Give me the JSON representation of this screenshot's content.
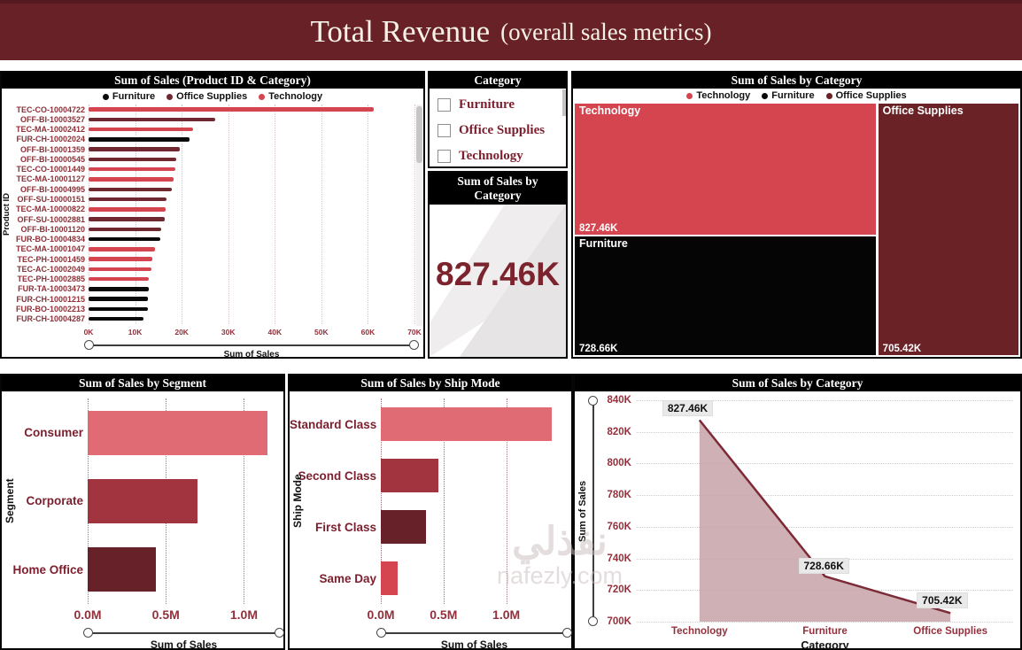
{
  "header": {
    "title": "Total Revenue",
    "subtitle": "(overall sales metrics)"
  },
  "colors": {
    "header_bg": "#682227",
    "panel_title_bg": "#000000",
    "technology": "#d4454f",
    "furniture": "#0a0a0a",
    "office_supplies": "#6f2730",
    "axis_text": "#93303c",
    "category_label_text": "#7b1f2e",
    "area_fill": "#c7a2a7",
    "area_line": "#7b2a36"
  },
  "slicer": {
    "title": "Category",
    "options": [
      {
        "label": "Furniture",
        "checked": false
      },
      {
        "label": "Office Supplies",
        "checked": false
      },
      {
        "label": "Technology",
        "checked": false
      }
    ]
  },
  "card": {
    "title": "Sum of Sales by Category",
    "value": "827.46K"
  },
  "watermark": {
    "arabic": "نفذلي",
    "latin": "nafezly.com"
  },
  "chart_data": [
    {
      "id": "product_sales",
      "type": "bar",
      "orientation": "horizontal",
      "title": "Sum of Sales (Product ID & Category)",
      "xlabel": "Sum of Sales",
      "ylabel": "Product ID",
      "x_max": 70000,
      "x_ticks": [
        "0K",
        "10K",
        "20K",
        "30K",
        "40K",
        "50K",
        "60K",
        "70K"
      ],
      "legend": [
        {
          "label": "Furniture",
          "color": "#0a0a0a"
        },
        {
          "label": "Office Supplies",
          "color": "#6f2730"
        },
        {
          "label": "Technology",
          "color": "#d4454f"
        }
      ],
      "bars": [
        {
          "label": "TEC-CO-10004722",
          "category": "Technology",
          "value": 61300
        },
        {
          "label": "OFF-BI-10003527",
          "category": "Office Supplies",
          "value": 27200
        },
        {
          "label": "TEC-MA-10002412",
          "category": "Technology",
          "value": 22500
        },
        {
          "label": "FUR-CH-10002024",
          "category": "Furniture",
          "value": 21700
        },
        {
          "label": "OFF-BI-10001359",
          "category": "Office Supplies",
          "value": 19600
        },
        {
          "label": "OFF-BI-10000545",
          "category": "Office Supplies",
          "value": 18900
        },
        {
          "label": "TEC-CO-10001449",
          "category": "Technology",
          "value": 18700
        },
        {
          "label": "TEC-MA-10001127",
          "category": "Technology",
          "value": 18300
        },
        {
          "label": "OFF-BI-10004995",
          "category": "Office Supplies",
          "value": 17900
        },
        {
          "label": "OFF-SU-10000151",
          "category": "Office Supplies",
          "value": 16800
        },
        {
          "label": "TEC-MA-10000822",
          "category": "Technology",
          "value": 16600
        },
        {
          "label": "OFF-SU-10002881",
          "category": "Office Supplies",
          "value": 16400
        },
        {
          "label": "OFF-BI-10001120",
          "category": "Office Supplies",
          "value": 15600
        },
        {
          "label": "FUR-BO-10004834",
          "category": "Furniture",
          "value": 15500
        },
        {
          "label": "TEC-MA-10001047",
          "category": "Technology",
          "value": 14300
        },
        {
          "label": "TEC-PH-10001459",
          "category": "Technology",
          "value": 13700
        },
        {
          "label": "TEC-AC-10002049",
          "category": "Technology",
          "value": 13600
        },
        {
          "label": "TEC-PH-10002885",
          "category": "Technology",
          "value": 12900
        },
        {
          "label": "FUR-TA-10003473",
          "category": "Furniture",
          "value": 12900
        },
        {
          "label": "FUR-CH-10001215",
          "category": "Furniture",
          "value": 12800
        },
        {
          "label": "FUR-BO-10002213",
          "category": "Furniture",
          "value": 12800
        },
        {
          "label": "FUR-CH-10004287",
          "category": "Furniture",
          "value": 11700
        }
      ]
    },
    {
      "id": "category_treemap",
      "type": "treemap",
      "title": "Sum of Sales by Category",
      "legend": [
        {
          "label": "Technology",
          "color": "#d4454f"
        },
        {
          "label": "Furniture",
          "color": "#0a0a0a"
        },
        {
          "label": "Office Supplies",
          "color": "#6b2227"
        }
      ],
      "tiles": [
        {
          "label": "Technology",
          "value": 827460,
          "value_label": "827.46K",
          "color": "#d4454f"
        },
        {
          "label": "Furniture",
          "value": 728660,
          "value_label": "728.66K",
          "color": "#050505"
        },
        {
          "label": "Office Supplies",
          "value": 705420,
          "value_label": "705.42K",
          "color": "#6b2227"
        }
      ]
    },
    {
      "id": "segment_sales",
      "type": "bar",
      "orientation": "horizontal",
      "title": "Sum of Sales by Segment",
      "xlabel": "Sum of Sales",
      "ylabel": "Segment",
      "x_max": 1230000,
      "x_ticks": [
        {
          "label": "0.0M",
          "value": 0
        },
        {
          "label": "0.5M",
          "value": 500000
        },
        {
          "label": "1.0M",
          "value": 1000000
        }
      ],
      "bars": [
        {
          "label": "Consumer",
          "value": 1130000,
          "color": "#e06b75"
        },
        {
          "label": "Corporate",
          "value": 690000,
          "color": "#a23440"
        },
        {
          "label": "Home Office",
          "value": 430000,
          "color": "#672129"
        }
      ]
    },
    {
      "id": "shipmode_sales",
      "type": "bar",
      "orientation": "horizontal",
      "title": "Sum of Sales by Ship Mode",
      "xlabel": "Sum of Sales",
      "ylabel": "Ship Mode",
      "x_max": 1490000,
      "x_ticks": [
        {
          "label": "0.0M",
          "value": 0
        },
        {
          "label": "0.5M",
          "value": 500000
        },
        {
          "label": "1.0M",
          "value": 1000000
        }
      ],
      "bars": [
        {
          "label": "Standard Class",
          "value": 1340000,
          "color": "#e06b75"
        },
        {
          "label": "Second Class",
          "value": 450000,
          "color": "#a23440"
        },
        {
          "label": "First Class",
          "value": 350000,
          "color": "#672129"
        },
        {
          "label": "Same Day",
          "value": 130000,
          "color": "#d4454f"
        }
      ]
    },
    {
      "id": "category_area",
      "type": "area",
      "title": "Sum of Sales by Category",
      "xlabel": "Category",
      "ylabel": "Sum of Sales",
      "categories": [
        "Technology",
        "Furniture",
        "Office Supplies"
      ],
      "values": [
        827460,
        728660,
        705420
      ],
      "point_labels": [
        "827.46K",
        "728.66K",
        "705.42K"
      ],
      "ylim": [
        700000,
        840000
      ],
      "y_ticks": [
        "840K",
        "820K",
        "800K",
        "780K",
        "760K",
        "740K",
        "720K",
        "700K"
      ],
      "line_color": "#7b2a36",
      "fill_color": "#c7a2a7"
    }
  ]
}
